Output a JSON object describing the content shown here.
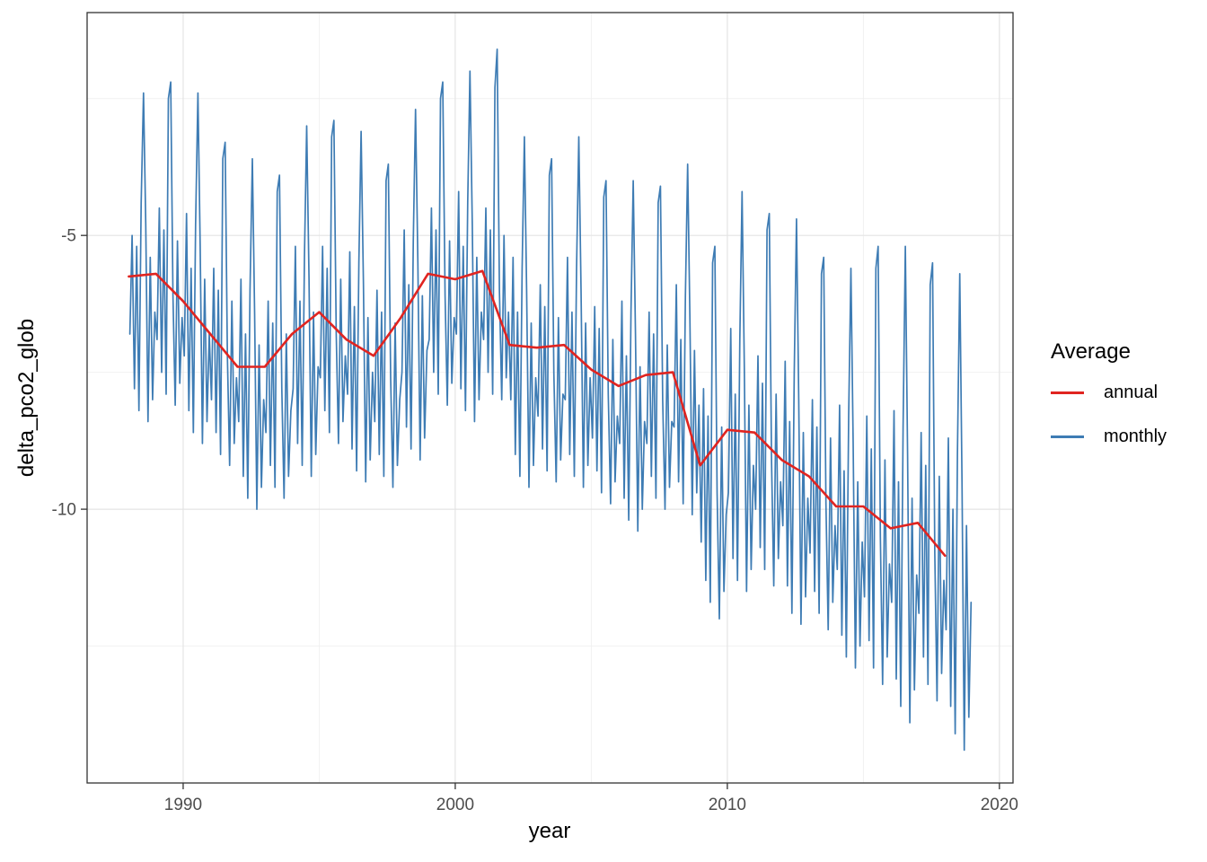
{
  "legend": {
    "title": "Average",
    "items": [
      {
        "label": "annual",
        "color": "#e02420"
      },
      {
        "label": "monthly",
        "color": "#3e7cb4"
      }
    ]
  },
  "chart_data": {
    "type": "line",
    "title": "",
    "xlabel": "year",
    "ylabel": "delta_pco2_glob",
    "xlim": [
      1986.47,
      2020.5
    ],
    "ylim": [
      -15.0,
      -0.93
    ],
    "x_ticks": [
      1990,
      2000,
      2010,
      2020
    ],
    "y_ticks": [
      -5,
      -10
    ],
    "x_minor_gridlines": [
      1995,
      2005,
      2015
    ],
    "y_minor_gridlines": [
      -2.5,
      -7.5,
      -12.5
    ],
    "grid": true,
    "legend_position": "right",
    "series": [
      {
        "name": "annual",
        "color": "#e02420",
        "x": [
          1988,
          1989,
          1990,
          1991,
          1992,
          1993,
          1994,
          1995,
          1996,
          1997,
          1998,
          1999,
          2000,
          2001,
          2002,
          2003,
          2004,
          2005,
          2006,
          2007,
          2008,
          2009,
          2010,
          2011,
          2012,
          2013,
          2014,
          2015,
          2016,
          2017,
          2018
        ],
        "y": [
          -5.75,
          -5.7,
          -6.2,
          -6.8,
          -7.4,
          -7.4,
          -6.8,
          -6.4,
          -6.9,
          -7.2,
          -6.5,
          -5.7,
          -5.8,
          -5.65,
          -7.0,
          -7.05,
          -7.0,
          -7.45,
          -7.75,
          -7.55,
          -7.5,
          -9.2,
          -8.55,
          -8.6,
          -9.1,
          -9.4,
          -9.95,
          -9.95,
          -10.35,
          -10.25,
          -10.85
        ]
      },
      {
        "name": "monthly",
        "color": "#3e7cb4",
        "start_year": 1988,
        "frequency": "monthly",
        "values_by_year": [
          [
            -6.8,
            -5.0,
            -7.8,
            -5.2,
            -8.2,
            -4.4,
            -2.4,
            -4.8,
            -8.4,
            -5.4,
            -8.0,
            -6.4
          ],
          [
            -6.9,
            -4.5,
            -7.5,
            -4.9,
            -7.9,
            -2.5,
            -2.2,
            -6.1,
            -8.1,
            -5.1,
            -7.7,
            -6.5
          ],
          [
            -7.2,
            -4.6,
            -8.2,
            -5.6,
            -8.6,
            -4.8,
            -2.4,
            -5.2,
            -8.8,
            -5.8,
            -8.4,
            -6.8
          ],
          [
            -8.0,
            -5.6,
            -8.6,
            -6.0,
            -9.0,
            -3.6,
            -3.3,
            -7.2,
            -9.2,
            -6.2,
            -8.8,
            -7.6
          ],
          [
            -8.4,
            -5.8,
            -9.4,
            -6.8,
            -9.8,
            -6.0,
            -3.6,
            -6.4,
            -10.0,
            -7.0,
            -9.6,
            -8.0
          ],
          [
            -8.6,
            -6.2,
            -9.2,
            -6.6,
            -9.6,
            -4.2,
            -3.9,
            -7.8,
            -9.8,
            -6.8,
            -9.4,
            -8.2
          ],
          [
            -7.8,
            -5.2,
            -8.8,
            -6.2,
            -9.2,
            -5.4,
            -3.0,
            -5.8,
            -9.4,
            -6.4,
            -9.0,
            -7.4
          ],
          [
            -7.6,
            -5.2,
            -8.2,
            -5.6,
            -8.6,
            -3.2,
            -2.9,
            -6.8,
            -8.8,
            -5.8,
            -8.4,
            -7.2
          ],
          [
            -7.9,
            -5.3,
            -8.9,
            -6.3,
            -9.3,
            -5.5,
            -3.1,
            -5.9,
            -9.5,
            -6.5,
            -9.1,
            -7.5
          ],
          [
            -8.4,
            -6.0,
            -9.0,
            -6.4,
            -9.4,
            -4.0,
            -3.7,
            -7.6,
            -9.6,
            -6.6,
            -9.2,
            -8.0
          ],
          [
            -7.5,
            -4.9,
            -8.5,
            -5.9,
            -8.9,
            -5.1,
            -2.7,
            -5.5,
            -9.1,
            -6.1,
            -8.7,
            -7.1
          ],
          [
            -6.9,
            -4.5,
            -7.5,
            -4.9,
            -7.9,
            -2.5,
            -2.2,
            -6.1,
            -8.1,
            -5.1,
            -7.7,
            -6.5
          ],
          [
            -6.8,
            -4.2,
            -7.8,
            -5.2,
            -8.2,
            -4.4,
            -2.0,
            -4.8,
            -8.4,
            -5.4,
            -8.0,
            -6.4
          ],
          [
            -6.9,
            -4.5,
            -7.5,
            -4.9,
            -7.9,
            -2.3,
            -1.6,
            -6.0,
            -8.0,
            -5.0,
            -7.6,
            -6.4
          ],
          [
            -8.0,
            -5.4,
            -9.0,
            -6.4,
            -9.4,
            -5.6,
            -3.2,
            -6.0,
            -9.6,
            -6.6,
            -9.2,
            -7.6
          ],
          [
            -8.3,
            -5.9,
            -8.9,
            -6.3,
            -9.3,
            -3.9,
            -3.6,
            -7.5,
            -9.5,
            -6.5,
            -9.1,
            -7.9
          ],
          [
            -8.0,
            -5.4,
            -9.0,
            -6.4,
            -9.4,
            -5.6,
            -3.2,
            -6.0,
            -9.6,
            -6.6,
            -9.2,
            -7.6
          ],
          [
            -8.7,
            -6.3,
            -9.3,
            -6.7,
            -9.7,
            -4.3,
            -4.0,
            -7.9,
            -9.9,
            -6.9,
            -9.5,
            -8.3
          ],
          [
            -8.8,
            -6.2,
            -9.8,
            -7.2,
            -10.2,
            -6.4,
            -4.0,
            -6.8,
            -10.4,
            -7.4,
            -10.0,
            -8.4
          ],
          [
            -8.8,
            -6.4,
            -9.4,
            -6.8,
            -9.8,
            -4.4,
            -4.1,
            -8.0,
            -10.0,
            -7.0,
            -9.6,
            -8.4
          ],
          [
            -8.5,
            -5.9,
            -9.5,
            -6.9,
            -9.9,
            -6.1,
            -3.7,
            -6.5,
            -10.1,
            -7.1,
            -9.7,
            -8.1
          ],
          [
            -10.6,
            -7.8,
            -11.3,
            -8.3,
            -11.7,
            -5.5,
            -5.2,
            -9.7,
            -12.0,
            -8.5,
            -11.5,
            -10.1
          ],
          [
            -9.7,
            -6.7,
            -10.9,
            -7.9,
            -11.3,
            -6.9,
            -4.2,
            -7.4,
            -11.5,
            -8.1,
            -11.1,
            -9.2
          ],
          [
            -10.0,
            -7.2,
            -10.7,
            -7.7,
            -11.1,
            -4.9,
            -4.6,
            -9.1,
            -11.4,
            -7.9,
            -10.9,
            -9.5
          ],
          [
            -10.3,
            -7.3,
            -11.4,
            -8.4,
            -11.9,
            -7.5,
            -4.7,
            -8.0,
            -12.1,
            -8.6,
            -11.6,
            -9.8
          ],
          [
            -10.8,
            -8.0,
            -11.5,
            -8.5,
            -11.9,
            -5.7,
            -5.4,
            -9.9,
            -12.2,
            -8.7,
            -11.7,
            -10.3
          ],
          [
            -11.1,
            -8.1,
            -12.3,
            -9.3,
            -12.7,
            -8.3,
            -5.6,
            -8.8,
            -12.9,
            -9.5,
            -12.5,
            -10.6
          ],
          [
            -11.6,
            -8.3,
            -12.4,
            -8.9,
            -12.9,
            -5.6,
            -5.2,
            -10.5,
            -13.2,
            -9.1,
            -12.7,
            -11.0
          ],
          [
            -11.7,
            -8.2,
            -13.1,
            -9.5,
            -13.6,
            -8.5,
            -5.2,
            -9.0,
            -13.9,
            -9.8,
            -13.3,
            -11.2
          ],
          [
            -11.9,
            -8.6,
            -12.7,
            -9.2,
            -13.2,
            -5.9,
            -5.5,
            -10.8,
            -13.5,
            -9.4,
            -13.0,
            -11.3
          ],
          [
            -12.2,
            -8.7,
            -13.6,
            -10.0,
            -14.1,
            -9.0,
            -5.7,
            -9.5,
            -14.4,
            -10.3,
            -13.8,
            -11.7
          ]
        ]
      }
    ]
  },
  "style": {
    "grid_major_color": "#e4e4e4",
    "grid_minor_color": "#f0f0f0",
    "panel_border_color": "#333333",
    "tick_label_color": "#4d4d4d",
    "background": "#ffffff"
  }
}
